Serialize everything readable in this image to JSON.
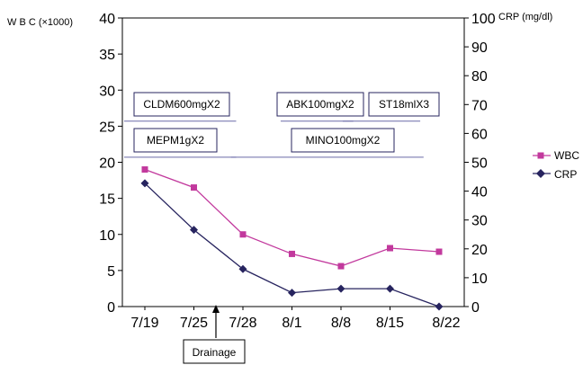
{
  "chart_data": {
    "type": "line",
    "x_categories": [
      "7/19",
      "7/25",
      "7/28",
      "8/1",
      "8/8",
      "8/15",
      "8/22"
    ],
    "left_axis": {
      "label": "W B C (×1000)",
      "ylim": [
        0,
        40
      ],
      "ticks": [
        0,
        5,
        10,
        15,
        20,
        25,
        30,
        35,
        40
      ]
    },
    "right_axis": {
      "label": "CRP (mg/dl)",
      "ylim": [
        0,
        100
      ],
      "ticks": [
        0,
        10,
        20,
        30,
        40,
        50,
        60,
        70,
        80,
        90,
        100
      ]
    },
    "series": [
      {
        "name": "WBC",
        "axis": "left",
        "color": "#c2399d",
        "marker": "square",
        "x": [
          0,
          1,
          2,
          3,
          4,
          5,
          6
        ],
        "values": [
          19,
          16.5,
          10,
          7.3,
          5.6,
          8.1,
          7.6
        ]
      },
      {
        "name": "CRP",
        "axis": "right",
        "color": "#27245f",
        "marker": "diamond",
        "x": [
          0,
          1,
          2,
          3,
          4,
          5,
          6
        ],
        "values": [
          42.7,
          26.6,
          13,
          4.8,
          6.2,
          6.2,
          0
        ]
      }
    ],
    "annotations": [
      {
        "label": "CLDM600mgX2",
        "line": [
          0,
          3.4
        ],
        "line_y": 25.7
      },
      {
        "label": "MEPM1gX2",
        "line": [
          0,
          3.4
        ],
        "line_y": 20.7
      },
      {
        "label": "MINO100mgX2",
        "line": [
          3.5,
          9
        ],
        "line_y": 20.7
      },
      {
        "label": "ABK100mgX2",
        "line": [
          5.1,
          6.9
        ],
        "line_y": 25.7
      },
      {
        "label": "ST18mlX3",
        "line": [
          7.1,
          8.9
        ],
        "line_y": 25.7
      }
    ],
    "drainage": {
      "label": "Drainage",
      "x": 2.1
    },
    "legend": {
      "position": "right"
    }
  }
}
